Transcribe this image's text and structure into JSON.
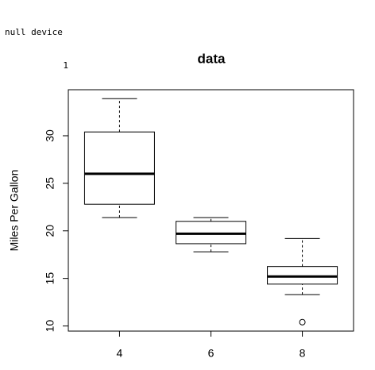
{
  "console": {
    "line1": "null device",
    "line2": "1"
  },
  "chart_data": {
    "type": "boxplot",
    "title": "data",
    "y_label": "Miles Per Gallon",
    "categories": [
      "4",
      "6",
      "8"
    ],
    "boxes": [
      {
        "min": 21.4,
        "q1": 22.8,
        "median": 26.0,
        "q3": 30.4,
        "max": 33.9,
        "outliers": []
      },
      {
        "min": 17.8,
        "q1": 18.65,
        "median": 19.7,
        "q3": 21.0,
        "max": 21.4,
        "outliers": []
      },
      {
        "min": 13.3,
        "q1": 14.4,
        "median": 15.2,
        "q3": 16.25,
        "max": 19.2,
        "outliers": [
          10.4
        ]
      }
    ],
    "ylim": [
      9.46,
      34.84
    ],
    "yticks": [
      10,
      15,
      20,
      25,
      30
    ],
    "color": "#000000"
  }
}
